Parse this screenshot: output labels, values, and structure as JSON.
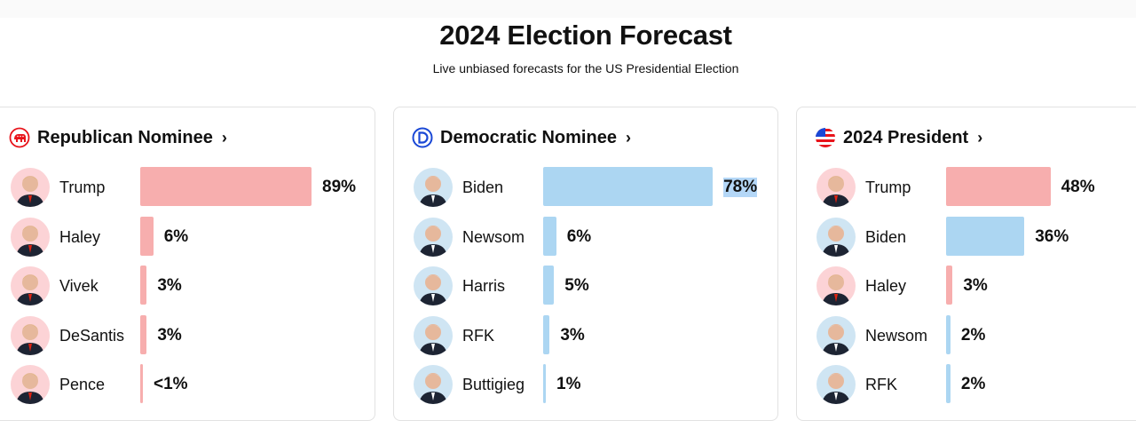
{
  "header": {
    "title": "2024 Election Forecast",
    "subtitle": "Live unbiased forecasts for the US Presidential Election"
  },
  "colors": {
    "republican": "#f7aeae",
    "democrat": "#acd6f2",
    "rep_avatar_bg": "#fcd3d6",
    "dem_avatar_bg": "#cfe5f3"
  },
  "cards": [
    {
      "title": "Republican Nominee",
      "icon": "republican-elephant-icon",
      "candidates": [
        {
          "name": "Trump",
          "percent_label": "89%",
          "value": 89,
          "party": "R"
        },
        {
          "name": "Haley",
          "percent_label": "6%",
          "value": 6,
          "party": "R"
        },
        {
          "name": "Vivek",
          "percent_label": "3%",
          "value": 3,
          "party": "R"
        },
        {
          "name": "DeSantis",
          "percent_label": "3%",
          "value": 3,
          "party": "R"
        },
        {
          "name": "Pence",
          "percent_label": "<1%",
          "value": 0.5,
          "party": "R"
        }
      ]
    },
    {
      "title": "Democratic Nominee",
      "icon": "democrat-d-icon",
      "candidates": [
        {
          "name": "Biden",
          "percent_label": "78%",
          "value": 78,
          "party": "D",
          "selected": true
        },
        {
          "name": "Newsom",
          "percent_label": "6%",
          "value": 6,
          "party": "D"
        },
        {
          "name": "Harris",
          "percent_label": "5%",
          "value": 5,
          "party": "D"
        },
        {
          "name": "RFK",
          "percent_label": "3%",
          "value": 3,
          "party": "D"
        },
        {
          "name": "Buttigieg",
          "percent_label": "1%",
          "value": 1,
          "party": "D"
        }
      ]
    },
    {
      "title": "2024 President",
      "icon": "us-flag-icon",
      "candidates": [
        {
          "name": "Trump",
          "percent_label": "48%",
          "value": 48,
          "party": "R"
        },
        {
          "name": "Biden",
          "percent_label": "36%",
          "value": 36,
          "party": "D"
        },
        {
          "name": "Haley",
          "percent_label": "3%",
          "value": 3,
          "party": "R"
        },
        {
          "name": "Newsom",
          "percent_label": "2%",
          "value": 2,
          "party": "D"
        },
        {
          "name": "RFK",
          "percent_label": "2%",
          "value": 2,
          "party": "D"
        }
      ]
    }
  ]
}
